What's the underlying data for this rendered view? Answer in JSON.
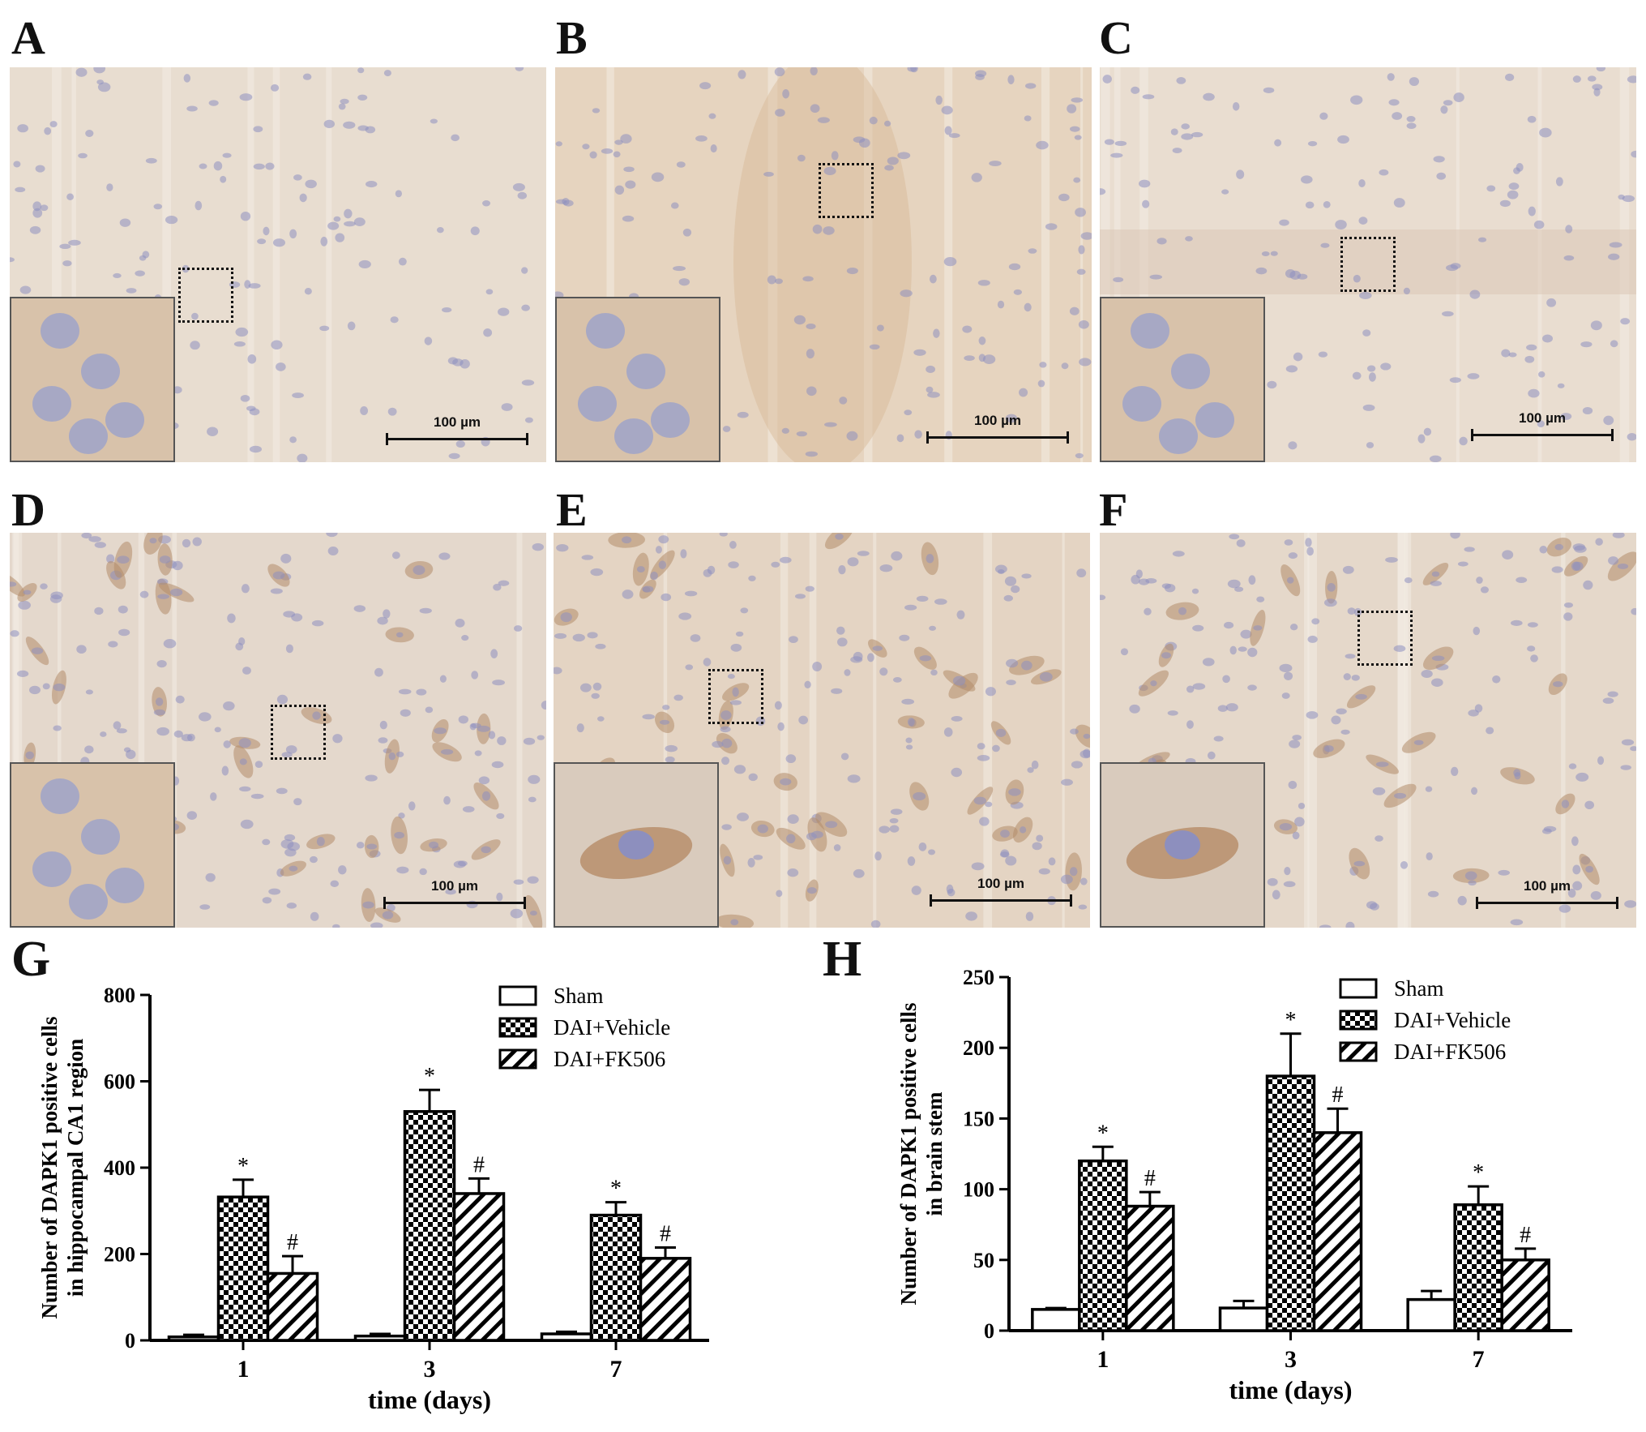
{
  "panels": [
    {
      "letter": "A",
      "scale": "100 µm",
      "tone": "#e8ddd0"
    },
    {
      "letter": "B",
      "scale": "100 µm",
      "tone": "#e6d4bf"
    },
    {
      "letter": "C",
      "scale": "100 µm",
      "tone": "#e9ddd0"
    },
    {
      "letter": "D",
      "scale": "100 µm",
      "tone": "#e4d8cc"
    },
    {
      "letter": "E",
      "scale": "100 µm",
      "tone": "#e4d4c3"
    },
    {
      "letter": "F",
      "scale": "100 µm",
      "tone": "#e5d8ca"
    }
  ],
  "chart_data": [
    {
      "panel": "G",
      "type": "bar",
      "categories": [
        "1",
        "3",
        "7"
      ],
      "xlabel": "time (days)",
      "ylabel_line1": "Number of DAPK1 positive cells",
      "ylabel_line2": "in hippocampal CA1 region",
      "ylim": [
        0,
        800
      ],
      "yticks": [
        0,
        200,
        400,
        600,
        800
      ],
      "legend_position": "top-right",
      "series": [
        {
          "name": "Sham",
          "pattern": "white",
          "values": [
            8,
            10,
            15
          ],
          "errors": [
            5,
            5,
            5
          ],
          "marks": [
            "",
            "",
            ""
          ]
        },
        {
          "name": "DAI+Vehicle",
          "pattern": "checker",
          "values": [
            332,
            530,
            290
          ],
          "errors": [
            40,
            50,
            30
          ],
          "marks": [
            "*",
            "*",
            "*"
          ]
        },
        {
          "name": "DAI+FK506",
          "pattern": "diagonal",
          "values": [
            155,
            340,
            190
          ],
          "errors": [
            40,
            35,
            25
          ],
          "marks": [
            "#",
            "#",
            "#"
          ]
        }
      ]
    },
    {
      "panel": "H",
      "type": "bar",
      "categories": [
        "1",
        "3",
        "7"
      ],
      "xlabel": "time (days)",
      "ylabel_line1": "Number of DAPK1 positive cells",
      "ylabel_line2": "in brain stem",
      "ylim": [
        0,
        250
      ],
      "yticks": [
        0,
        50,
        100,
        150,
        200,
        250
      ],
      "legend_position": "top-right",
      "series": [
        {
          "name": "Sham",
          "pattern": "white",
          "values": [
            15,
            16,
            22
          ],
          "errors": [
            1,
            5,
            6
          ],
          "marks": [
            "",
            "",
            ""
          ]
        },
        {
          "name": "DAI+Vehicle",
          "pattern": "checker",
          "values": [
            120,
            180,
            89
          ],
          "errors": [
            10,
            30,
            13
          ],
          "marks": [
            "*",
            "*",
            "*"
          ]
        },
        {
          "name": "DAI+FK506",
          "pattern": "diagonal",
          "values": [
            88,
            140,
            50
          ],
          "errors": [
            10,
            17,
            8
          ],
          "marks": [
            "#",
            "#",
            "#"
          ]
        }
      ]
    }
  ]
}
